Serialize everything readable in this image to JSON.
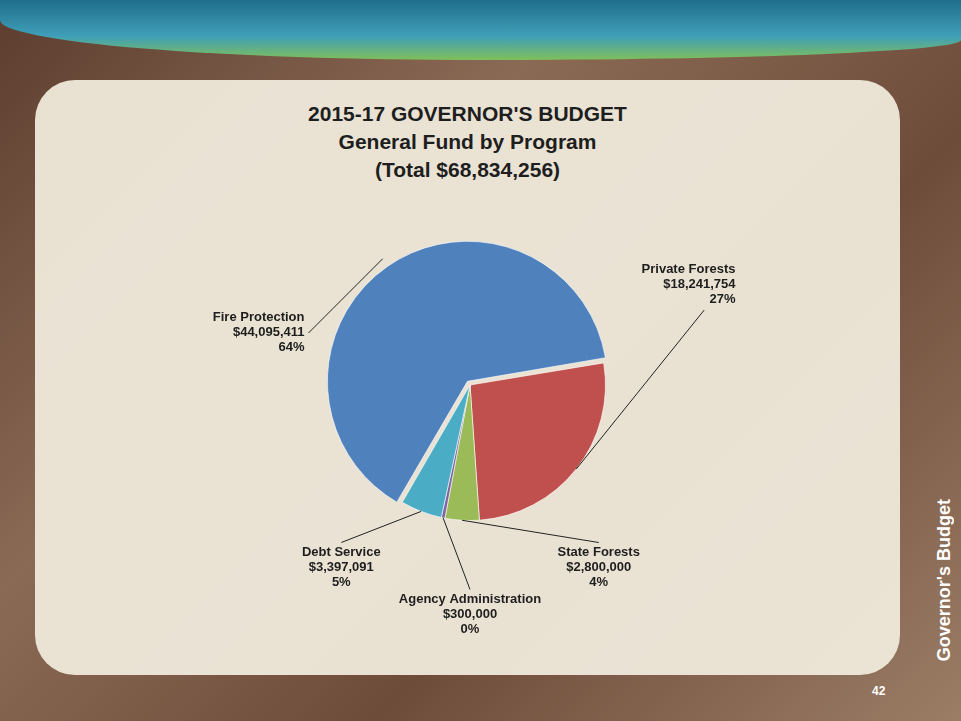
{
  "chart_data": {
    "type": "pie",
    "title": "2015-17 GOVERNOR'S BUDGET",
    "subtitle": "General Fund by Program",
    "annotation": "(Total $68,834,256)",
    "categories": [
      "Fire Protection",
      "Private Forests",
      "State Forests",
      "Agency Administration",
      "Debt Service"
    ],
    "values": [
      44095411,
      18241754,
      2800000,
      300000,
      3397091
    ],
    "value_labels": [
      "$44,095,411",
      "$18,241,754",
      "$2,800,000",
      "$300,000",
      "$3,397,091"
    ],
    "percentages": [
      64,
      27,
      4,
      0,
      5
    ],
    "percent_labels": [
      "64%",
      "27%",
      "4%",
      "0%",
      "5%"
    ],
    "colors": [
      "#4f81bd",
      "#c0504d",
      "#9bbb59",
      "#8064a2",
      "#4bacc6"
    ],
    "data_labels": true
  },
  "side_label": "Governor's Budget",
  "page_number": 42
}
